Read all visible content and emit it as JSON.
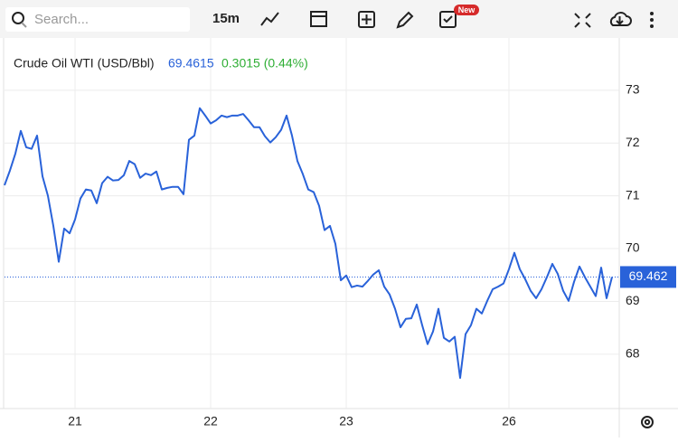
{
  "chart_data": {
    "type": "line",
    "toolbar": {
      "search_placeholder": "Search...",
      "interval": "15m",
      "badge": "New"
    },
    "last_value": "69.4615",
    "change": "0.3015 (0.44%)",
    "price_line": 69.462,
    "categories": [
      null,
      null,
      null,
      null,
      null,
      null,
      null,
      null,
      null,
      null,
      null,
      null,
      null,
      "21",
      null,
      null,
      null,
      null,
      null,
      null,
      null,
      null,
      null,
      null,
      null,
      null,
      null,
      null,
      null,
      null,
      null,
      null,
      null,
      null,
      null,
      null,
      null,
      null,
      "22",
      null,
      null,
      null,
      null,
      null,
      null,
      null,
      null,
      null,
      null,
      null,
      null,
      null,
      null,
      null,
      null,
      null,
      null,
      null,
      null,
      null,
      null,
      null,
      null,
      "23",
      null,
      null,
      null,
      null,
      null,
      null,
      null,
      null,
      null,
      null,
      null,
      null,
      null,
      null,
      null,
      null,
      null,
      null,
      null,
      null,
      null,
      null,
      null,
      null,
      null,
      null,
      null,
      null,
      null,
      "26",
      null,
      null,
      null,
      null,
      null,
      null,
      null,
      null,
      null,
      null,
      null,
      null,
      null,
      null,
      null,
      null,
      null,
      null,
      null
    ],
    "series": [
      {
        "name": "Crude Oil WTI (USD/Bbl)",
        "color": "#2962d9",
        "values": [
          71.2,
          71.48,
          71.8,
          72.23,
          71.92,
          71.89,
          72.14,
          71.37,
          71.0,
          70.43,
          69.75,
          70.38,
          70.29,
          70.55,
          70.95,
          71.12,
          71.1,
          70.86,
          71.24,
          71.36,
          71.29,
          71.3,
          71.39,
          71.66,
          71.6,
          71.34,
          71.42,
          71.39,
          71.46,
          71.12,
          71.15,
          71.17,
          71.17,
          71.03,
          72.06,
          72.14,
          72.66,
          72.52,
          72.37,
          72.43,
          72.52,
          72.49,
          72.52,
          72.52,
          72.55,
          72.43,
          72.3,
          72.3,
          72.13,
          72.01,
          72.11,
          72.25,
          72.52,
          72.14,
          71.66,
          71.41,
          71.12,
          71.07,
          70.81,
          70.35,
          70.43,
          70.09,
          69.4,
          69.49,
          69.27,
          69.3,
          69.28,
          69.39,
          69.51,
          69.59,
          69.28,
          69.13,
          68.86,
          68.51,
          68.67,
          68.68,
          68.94,
          68.55,
          68.19,
          68.43,
          68.86,
          68.31,
          68.24,
          68.33,
          67.55,
          68.38,
          68.55,
          68.86,
          68.77,
          69.01,
          69.23,
          69.28,
          69.34,
          69.61,
          69.92,
          69.61,
          69.42,
          69.2,
          69.06,
          69.23,
          69.46,
          69.71,
          69.52,
          69.2,
          69.01,
          69.37,
          69.66,
          69.46,
          69.28,
          69.1,
          69.64,
          69.06,
          69.4615
        ]
      }
    ],
    "ylim": [
      66.97,
      73.99
    ],
    "yticks": [
      68,
      69,
      70,
      71,
      72,
      73
    ],
    "grid": true
  }
}
